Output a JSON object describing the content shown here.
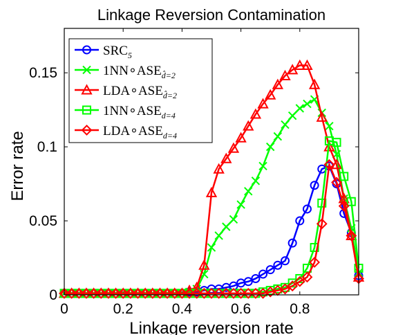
{
  "chart_data": {
    "type": "line",
    "title": "Linkage Reversion Contamination",
    "xlabel": "Linkage reversion rate",
    "ylabel": "Error rate",
    "xlim": [
      0,
      1
    ],
    "ylim": [
      0,
      0.18
    ],
    "grid": false,
    "legend_position": "top-left",
    "x_ticks": [
      "0",
      "0.2",
      "0.4",
      "0.6",
      "0.8"
    ],
    "y_ticks": [
      "0",
      "0.05",
      "0.1",
      "0.15"
    ],
    "x": [
      0,
      0.025,
      0.05,
      0.075,
      0.1,
      0.125,
      0.15,
      0.175,
      0.2,
      0.225,
      0.25,
      0.275,
      0.3,
      0.325,
      0.35,
      0.375,
      0.4,
      0.425,
      0.45,
      0.475,
      0.5,
      0.525,
      0.55,
      0.575,
      0.6,
      0.625,
      0.65,
      0.675,
      0.7,
      0.725,
      0.75,
      0.775,
      0.8,
      0.825,
      0.85,
      0.875,
      0.9,
      0.925,
      0.95,
      0.975,
      1.0
    ],
    "series": [
      {
        "name": "SRC",
        "name_sub": "5",
        "color": "#0000ff",
        "marker": "circle",
        "values": [
          0.001,
          0.001,
          0.001,
          0.001,
          0.001,
          0.001,
          0.001,
          0.001,
          0.001,
          0.001,
          0.001,
          0.001,
          0.001,
          0.001,
          0.001,
          0.001,
          0.001,
          0.002,
          0.002,
          0.003,
          0.004,
          0.004,
          0.005,
          0.006,
          0.008,
          0.009,
          0.011,
          0.014,
          0.017,
          0.02,
          0.023,
          0.035,
          0.05,
          0.058,
          0.074,
          0.085,
          0.087,
          0.075,
          0.055,
          0.042,
          0.013
        ]
      },
      {
        "name": "1NN∘ASE",
        "name_sub": "d̂=2",
        "color": "#00ff00",
        "marker": "x",
        "values": [
          0.001,
          0.001,
          0.001,
          0.001,
          0.001,
          0.001,
          0.001,
          0.001,
          0.001,
          0.001,
          0.001,
          0.001,
          0.001,
          0.001,
          0.001,
          0.001,
          0.001,
          0.002,
          0.004,
          0.014,
          0.032,
          0.04,
          0.046,
          0.051,
          0.061,
          0.07,
          0.077,
          0.087,
          0.1,
          0.107,
          0.115,
          0.121,
          0.126,
          0.129,
          0.132,
          0.123,
          0.114,
          0.095,
          0.065,
          0.045,
          0.015
        ]
      },
      {
        "name": "LDA∘ASE",
        "name_sub": "d̂=2",
        "color": "#ff0000",
        "marker": "triangle",
        "values": [
          0.001,
          0.001,
          0.001,
          0.001,
          0.001,
          0.001,
          0.001,
          0.001,
          0.001,
          0.001,
          0.001,
          0.001,
          0.001,
          0.001,
          0.001,
          0.001,
          0.001,
          0.003,
          0.005,
          0.02,
          0.069,
          0.085,
          0.092,
          0.099,
          0.106,
          0.114,
          0.122,
          0.129,
          0.135,
          0.142,
          0.148,
          0.152,
          0.155,
          0.155,
          0.142,
          0.12,
          0.1,
          0.088,
          0.065,
          0.04,
          0.012
        ]
      },
      {
        "name": "1NN∘ASE",
        "name_sub": "d=4",
        "color": "#00ff00",
        "marker": "square",
        "values": [
          0.001,
          0.001,
          0.001,
          0.001,
          0.001,
          0.001,
          0.001,
          0.001,
          0.001,
          0.001,
          0.001,
          0.001,
          0.001,
          0.001,
          0.001,
          0.001,
          0.001,
          0.001,
          0.001,
          0.001,
          0.001,
          0.001,
          0.001,
          0.001,
          0.001,
          0.001,
          0.001,
          0.002,
          0.003,
          0.004,
          0.005,
          0.008,
          0.011,
          0.018,
          0.032,
          0.062,
          0.104,
          0.103,
          0.08,
          0.063,
          0.018
        ]
      },
      {
        "name": "LDA∘ASE",
        "name_sub": "d=4",
        "color": "#ff0000",
        "marker": "diamond",
        "values": [
          0.001,
          0.001,
          0.001,
          0.001,
          0.001,
          0.001,
          0.001,
          0.001,
          0.001,
          0.001,
          0.001,
          0.001,
          0.001,
          0.001,
          0.001,
          0.001,
          0.001,
          0.001,
          0.001,
          0.001,
          0.001,
          0.001,
          0.001,
          0.001,
          0.001,
          0.001,
          0.001,
          0.001,
          0.002,
          0.003,
          0.004,
          0.006,
          0.009,
          0.012,
          0.022,
          0.048,
          0.088,
          0.076,
          0.06,
          0.04,
          0.011
        ]
      }
    ]
  }
}
